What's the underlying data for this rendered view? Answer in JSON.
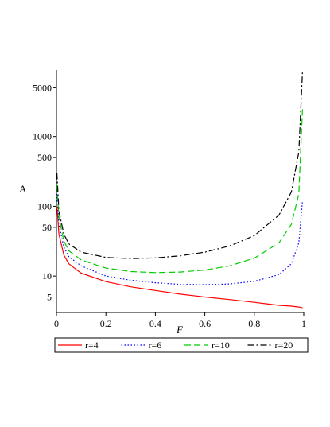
{
  "chart_data": {
    "type": "line",
    "title": "",
    "xlabel": "F",
    "ylabel": "A",
    "y_scale": "log",
    "xlim": [
      0,
      1
    ],
    "ylim": [
      3,
      9000
    ],
    "x_ticks": [
      0,
      0.2,
      0.4,
      0.6,
      0.8,
      1
    ],
    "x_tick_labels": [
      "0",
      "0.2",
      "0.4",
      "0.6",
      "0.8",
      "1"
    ],
    "y_ticks": [
      5,
      10,
      50,
      100,
      500,
      1000,
      5000
    ],
    "y_tick_labels": [
      "5",
      "10",
      "50",
      "100",
      "500",
      "1000",
      "5000"
    ],
    "grid": false,
    "legend_position": "bottom",
    "x": [
      0.002,
      0.01,
      0.03,
      0.05,
      0.1,
      0.2,
      0.3,
      0.4,
      0.5,
      0.6,
      0.7,
      0.8,
      0.9,
      0.95,
      0.98,
      0.995
    ],
    "series": [
      {
        "name": "r=4",
        "color": "#ff0000",
        "dash": "solid",
        "values": [
          100,
          40,
          20,
          15,
          11,
          8.3,
          7,
          6.2,
          5.5,
          5.0,
          4.6,
          4.2,
          3.8,
          3.7,
          3.6,
          3.5
        ]
      },
      {
        "name": "r=6",
        "color": "#0000ff",
        "dash": "dotted",
        "values": [
          150,
          55,
          26,
          19,
          14,
          10,
          8.7,
          8.0,
          7.6,
          7.5,
          7.7,
          8.4,
          10.5,
          15,
          30,
          120
        ]
      },
      {
        "name": "r=10",
        "color": "#00cc00",
        "dash": "dashed",
        "values": [
          200,
          70,
          32,
          23,
          17,
          13,
          11.6,
          11.2,
          11.4,
          12.2,
          14,
          18,
          30,
          55,
          150,
          2500
        ]
      },
      {
        "name": "r=20",
        "color": "#000000",
        "dash": "dashdot",
        "values": [
          300,
          85,
          40,
          29,
          22,
          18.5,
          17.8,
          18.2,
          19.5,
          22,
          27,
          38,
          75,
          160,
          600,
          8500
        ]
      }
    ]
  }
}
